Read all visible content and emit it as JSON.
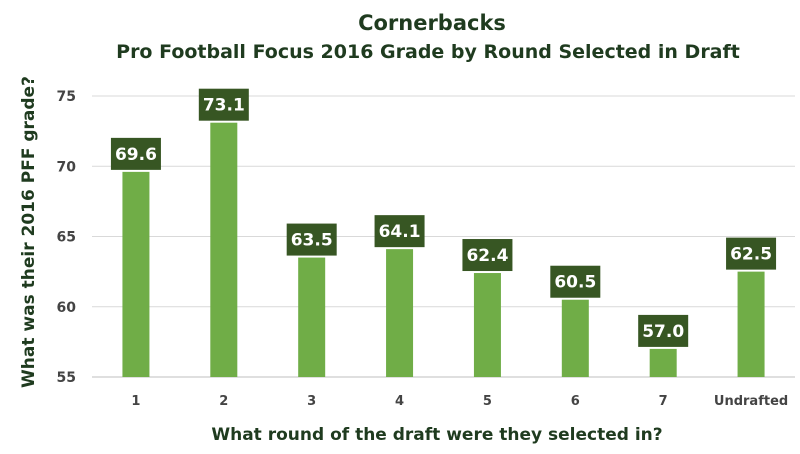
{
  "chart_data": {
    "type": "bar",
    "title": "Cornerbacks",
    "subtitle": "Pro Football Focus 2016 Grade by Round Selected in Draft",
    "xlabel": "What round of the draft were they selected in?",
    "ylabel": "What was their 2016 PFF grade?",
    "categories": [
      "1",
      "2",
      "3",
      "4",
      "5",
      "6",
      "7",
      "Undrafted"
    ],
    "values": [
      69.6,
      73.1,
      63.5,
      64.1,
      62.4,
      60.5,
      57.0,
      62.5
    ],
    "value_labels": [
      "69.6",
      "73.1",
      "63.5",
      "64.1",
      "62.4",
      "60.5",
      "57.0",
      "62.5"
    ],
    "ylim": [
      55,
      75
    ],
    "yticks": [
      "55",
      "60",
      "65",
      "70",
      "75"
    ],
    "grid": true,
    "colors": {
      "bar": "#70ad47",
      "label_bg": "#375623",
      "label_text": "#ffffff",
      "title": "#1f3b1f",
      "grid": "#d9d9d9"
    }
  }
}
